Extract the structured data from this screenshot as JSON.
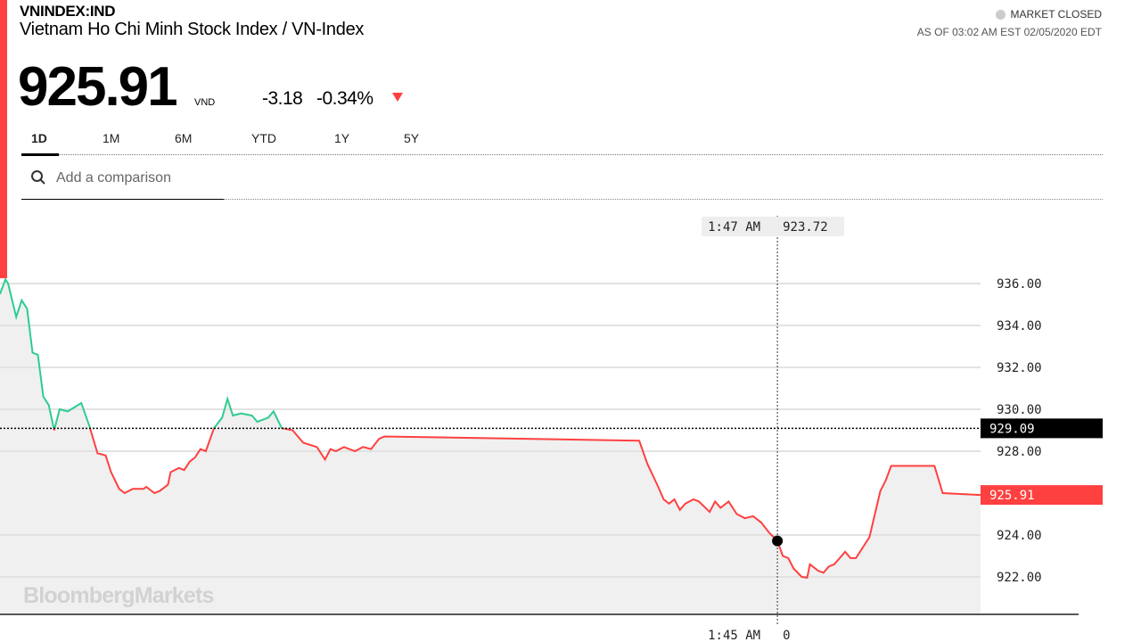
{
  "header": {
    "ticker": "VNINDEX:IND",
    "name": "Vietnam Ho Chi Minh Stock Index / VN-Index",
    "price": "925.91",
    "currency": "VND",
    "change": "-3.18",
    "change_pct": "-0.34%",
    "direction": "down",
    "market_status": "MARKET CLOSED",
    "as_of": "AS OF 03:02 AM EST 02/05/2020 EDT"
  },
  "tabs": [
    {
      "label": "1D",
      "active": true
    },
    {
      "label": "1M"
    },
    {
      "label": "6M"
    },
    {
      "label": "YTD"
    },
    {
      "label": "1Y"
    },
    {
      "label": "5Y"
    }
  ],
  "search": {
    "placeholder": "Add a comparison",
    "icon": "search-icon"
  },
  "brand": "BloombergMarkets",
  "colors": {
    "up": "#2ecc8f",
    "down": "#ff4040",
    "accent_bar": "#ff4040"
  },
  "chart_data": {
    "type": "line",
    "previous_close": 929.09,
    "previous_close_label": "929.09",
    "last_label": "925.91",
    "ylim": [
      920.5,
      937.5
    ],
    "yticks": [
      "936.00",
      "934.00",
      "932.00",
      "930.00",
      "928.00",
      "924.00",
      "922.00"
    ],
    "ytick_values": [
      936,
      934,
      932,
      930,
      928,
      924,
      922
    ],
    "grid": true,
    "crosshair": {
      "time_label": "1:47 AM",
      "value_label": "923.72",
      "time": "01:47",
      "value": 923.72,
      "axis_time_label": "1:45 AM",
      "axis_value_label": "0"
    },
    "x_start": "21:00",
    "x_end": "03:02",
    "points": [
      [
        "21:00",
        935.5
      ],
      [
        "21:02",
        936.2
      ],
      [
        "21:03",
        936.0
      ],
      [
        "21:06",
        934.4
      ],
      [
        "21:08",
        935.2
      ],
      [
        "21:10",
        934.8
      ],
      [
        "21:12",
        932.7
      ],
      [
        "21:14",
        932.6
      ],
      [
        "21:16",
        930.6
      ],
      [
        "21:18",
        930.2
      ],
      [
        "21:20",
        929.0
      ],
      [
        "21:22",
        930.0
      ],
      [
        "21:25",
        929.9
      ],
      [
        "21:30",
        930.3
      ],
      [
        "21:33",
        929.2
      ],
      [
        "21:36",
        927.9
      ],
      [
        "21:39",
        927.8
      ],
      [
        "21:41",
        927.0
      ],
      [
        "21:44",
        926.2
      ],
      [
        "21:46",
        926.0
      ],
      [
        "21:49",
        926.2
      ],
      [
        "21:53",
        926.2
      ],
      [
        "21:54",
        926.3
      ],
      [
        "21:57",
        926.0
      ],
      [
        "21:59",
        926.1
      ],
      [
        "22:02",
        926.4
      ],
      [
        "22:03",
        927.0
      ],
      [
        "22:06",
        927.2
      ],
      [
        "22:08",
        927.1
      ],
      [
        "22:10",
        927.5
      ],
      [
        "22:12",
        927.7
      ],
      [
        "22:14",
        928.1
      ],
      [
        "22:16",
        928.0
      ],
      [
        "22:19",
        929.1
      ],
      [
        "22:22",
        929.6
      ],
      [
        "22:24",
        930.5
      ],
      [
        "22:26",
        929.7
      ],
      [
        "22:29",
        929.8
      ],
      [
        "22:33",
        929.7
      ],
      [
        "22:35",
        929.4
      ],
      [
        "22:39",
        929.6
      ],
      [
        "22:41",
        929.9
      ],
      [
        "22:44",
        929.1
      ],
      [
        "22:48",
        929.0
      ],
      [
        "22:52",
        928.4
      ],
      [
        "22:57",
        928.2
      ],
      [
        "23:00",
        927.6
      ],
      [
        "23:02",
        928.1
      ],
      [
        "23:04",
        928.0
      ],
      [
        "23:07",
        928.2
      ],
      [
        "23:11",
        928.0
      ],
      [
        "23:14",
        928.2
      ],
      [
        "23:17",
        928.1
      ],
      [
        "23:20",
        928.6
      ],
      [
        "23:22",
        928.7
      ],
      [
        "00:56",
        928.5
      ],
      [
        "00:59",
        927.4
      ],
      [
        "01:03",
        926.3
      ],
      [
        "01:05",
        925.7
      ],
      [
        "01:07",
        925.5
      ],
      [
        "01:09",
        925.7
      ],
      [
        "01:11",
        925.2
      ],
      [
        "01:13",
        925.5
      ],
      [
        "01:16",
        925.7
      ],
      [
        "01:18",
        925.6
      ],
      [
        "01:22",
        925.1
      ],
      [
        "01:24",
        925.6
      ],
      [
        "01:26",
        925.3
      ],
      [
        "01:29",
        925.6
      ],
      [
        "01:32",
        925.0
      ],
      [
        "01:35",
        924.8
      ],
      [
        "01:38",
        924.9
      ],
      [
        "01:41",
        924.6
      ],
      [
        "01:44",
        924.1
      ],
      [
        "01:47",
        923.72
      ],
      [
        "01:49",
        923.0
      ],
      [
        "01:51",
        922.9
      ],
      [
        "01:53",
        922.4
      ],
      [
        "01:56",
        922.0
      ],
      [
        "01:58",
        921.96
      ],
      [
        "01:59",
        922.6
      ],
      [
        "02:02",
        922.3
      ],
      [
        "02:04",
        922.2
      ],
      [
        "02:06",
        922.5
      ],
      [
        "02:08",
        922.6
      ],
      [
        "02:12",
        923.2
      ],
      [
        "02:14",
        922.9
      ],
      [
        "02:16",
        922.9
      ],
      [
        "02:21",
        923.9
      ],
      [
        "02:25",
        926.1
      ],
      [
        "02:27",
        926.6
      ],
      [
        "02:29",
        927.3
      ],
      [
        "02:45",
        927.3
      ],
      [
        "02:48",
        926.0
      ],
      [
        "03:02",
        925.91
      ]
    ]
  }
}
